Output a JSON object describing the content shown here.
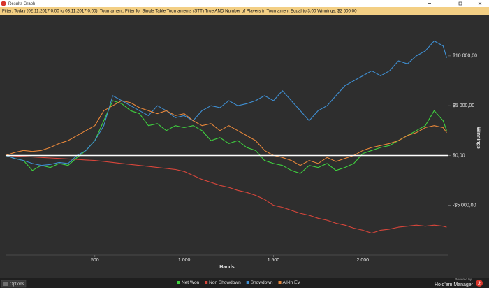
{
  "window": {
    "title": "Results Graph"
  },
  "filter": "Filter: Today (02.11.2017 0:00 to 03.11.2017 0:00); Tournament: Filter for Single Table Tournaments (STT) True AND Number of Players in Tournament Equal to 3.00  Winnings: $2 500,00",
  "footer": {
    "options": "Options",
    "powered_by": "Powered by",
    "brand": "Hold'em Manager",
    "brand_number": "2"
  },
  "chart_data": {
    "type": "line",
    "xlabel": "Hands",
    "ylabel": "Winnings",
    "x": [
      0,
      50,
      100,
      150,
      200,
      250,
      300,
      350,
      400,
      450,
      500,
      550,
      600,
      650,
      700,
      750,
      800,
      850,
      900,
      950,
      1000,
      1050,
      1100,
      1150,
      1200,
      1250,
      1300,
      1350,
      1400,
      1450,
      1500,
      1550,
      1600,
      1650,
      1700,
      1750,
      1800,
      1850,
      1900,
      1950,
      2000,
      2050,
      2100,
      2150,
      2200,
      2250,
      2300,
      2350,
      2400,
      2450,
      2470
    ],
    "series": [
      {
        "name": "Net Won",
        "color": "#3fd23f",
        "values": [
          0,
          -300,
          -500,
          -1500,
          -1000,
          -1200,
          -800,
          -1000,
          -200,
          500,
          1500,
          3500,
          5500,
          5200,
          4500,
          4200,
          3000,
          3200,
          2500,
          3000,
          2800,
          3000,
          2500,
          1500,
          1800,
          1200,
          1500,
          800,
          500,
          -500,
          -800,
          -1000,
          -1500,
          -1800,
          -1000,
          -1200,
          -800,
          -1500,
          -1200,
          -800,
          200,
          500,
          800,
          1000,
          1500,
          2000,
          2500,
          3000,
          4500,
          3500,
          2500
        ]
      },
      {
        "name": "Non Showdown",
        "color": "#d9463b",
        "values": [
          0,
          -50,
          -100,
          -150,
          -200,
          -250,
          -300,
          -350,
          -400,
          -450,
          -500,
          -600,
          -700,
          -800,
          -900,
          -1000,
          -1100,
          -1200,
          -1300,
          -1400,
          -1600,
          -2000,
          -2400,
          -2700,
          -3000,
          -3200,
          -3500,
          -3700,
          -4000,
          -4400,
          -5000,
          -5200,
          -5500,
          -5800,
          -6000,
          -6300,
          -6500,
          -6800,
          -7000,
          -7300,
          -7500,
          -7800,
          -7500,
          -7400,
          -7200,
          -7100,
          -7000,
          -7100,
          -7000,
          -7100,
          -7200
        ]
      },
      {
        "name": "Showdown",
        "color": "#3f8fd2",
        "values": [
          0,
          -300,
          -500,
          -800,
          -1000,
          -900,
          -700,
          -800,
          0,
          500,
          1500,
          3000,
          6000,
          5500,
          5000,
          4500,
          4000,
          5000,
          4500,
          3800,
          4000,
          3500,
          4500,
          5000,
          4800,
          5500,
          5000,
          5200,
          5500,
          6000,
          5500,
          6500,
          5500,
          4500,
          3500,
          4500,
          5000,
          6000,
          7000,
          7500,
          8000,
          8500,
          8000,
          8500,
          9500,
          9200,
          10000,
          10500,
          11500,
          11000,
          9800
        ]
      },
      {
        "name": "All-In EV",
        "color": "#e8873a",
        "values": [
          0,
          300,
          500,
          400,
          500,
          800,
          1200,
          1500,
          2000,
          2500,
          3000,
          4500,
          5000,
          5500,
          5300,
          4800,
          4500,
          4200,
          4500,
          4000,
          4200,
          3500,
          3000,
          3200,
          2500,
          3000,
          2500,
          2000,
          1500,
          500,
          0,
          -200,
          -500,
          -1000,
          -500,
          -800,
          -200,
          -600,
          -300,
          0,
          500,
          800,
          1000,
          1200,
          1500,
          2000,
          2300,
          2800,
          3000,
          2800,
          2300
        ]
      }
    ],
    "xlim": [
      0,
      2480
    ],
    "xticks": [
      500,
      {
        "value": 1000,
        "label": "1 000"
      },
      {
        "value": 1500,
        "label": "1 500"
      },
      {
        "value": 2000,
        "label": "2 000"
      }
    ],
    "ylim": [
      -10000,
      13500
    ],
    "yticks": [
      {
        "value": -5000,
        "label": "-$5 000,00"
      },
      {
        "value": 0,
        "label": "$0,00"
      },
      {
        "value": 5000,
        "label": "$5 000,00"
      },
      {
        "value": 10000,
        "label": "$10 000,00"
      }
    ],
    "grid": false,
    "legend": "bottom"
  }
}
